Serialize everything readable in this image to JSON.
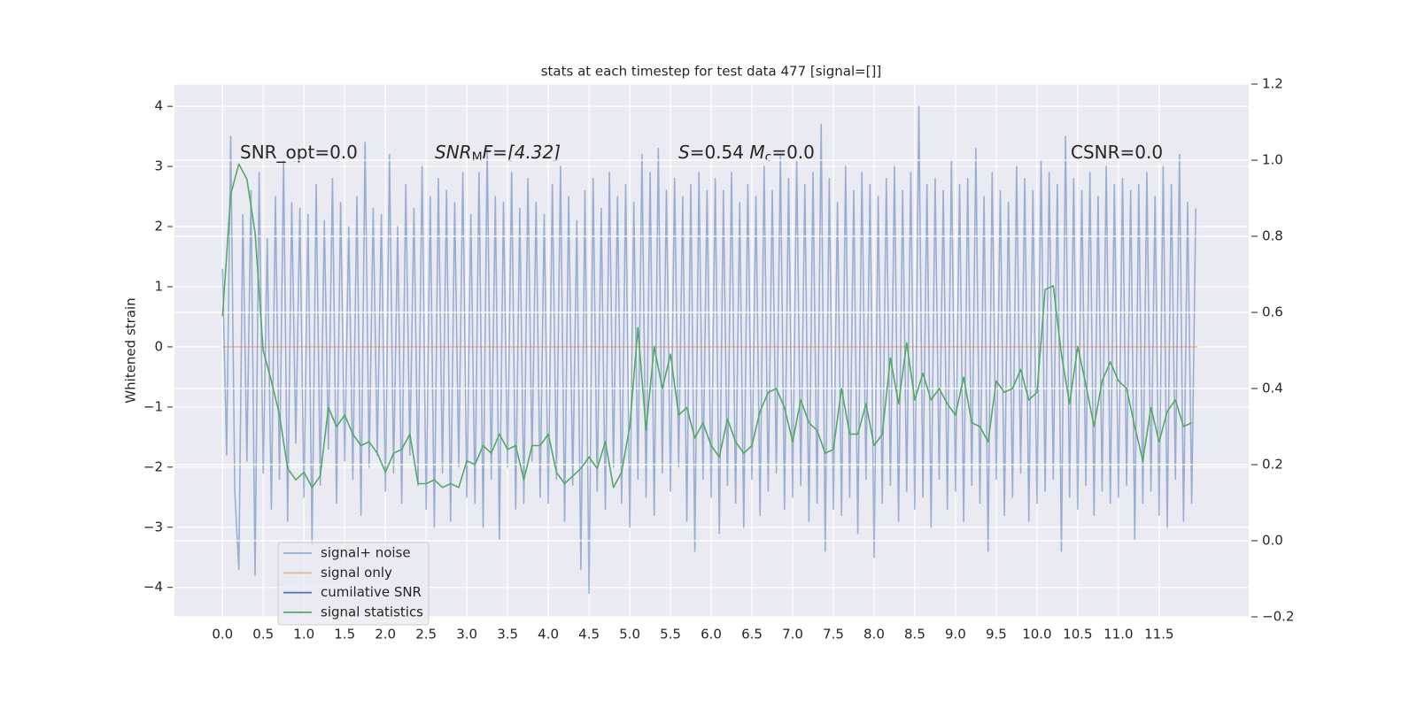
{
  "chart_data": {
    "type": "line",
    "title": "stats at each timestep for test data 477 [signal=[]]",
    "ylabel": "Whitened strain",
    "annotations": [
      [
        "SNR_opt=0.0"
      ],
      [
        "SNR",
        "M",
        "F=[4.32]"
      ],
      [
        "S",
        "=0.54   ",
        "M",
        "c",
        "=0.0"
      ],
      [
        "CSNR=0.0"
      ]
    ],
    "grid": true,
    "legend": "lower left",
    "xlim": [
      -0.59,
      12.6
    ],
    "ylim": [
      -4.49,
      4.37
    ],
    "y2lim": [
      -0.2,
      1.2
    ],
    "xticks": [
      {
        "value": 0,
        "label": "0.0"
      },
      0.5,
      {
        "value": 1,
        "label": "1.0"
      },
      1.5,
      {
        "value": 2,
        "label": "2.0"
      },
      2.5,
      {
        "value": 3,
        "label": "3.0"
      },
      3.5,
      {
        "value": 4,
        "label": "4.0"
      },
      4.5,
      {
        "value": 5,
        "label": "5.0"
      },
      5.5,
      {
        "value": 6,
        "label": "6.0"
      },
      6.5,
      {
        "value": 7,
        "label": "7.0"
      },
      7.5,
      {
        "value": 8,
        "label": "8.0"
      },
      8.5,
      {
        "value": 9,
        "label": "9.0"
      },
      9.5,
      {
        "value": 10,
        "label": "10.0"
      },
      10.5,
      {
        "value": 11,
        "label": "11.0"
      },
      11.5
    ],
    "yticks": [
      {
        "value": -4,
        "label": "−4"
      },
      {
        "value": -3,
        "label": "−3"
      },
      {
        "value": -2,
        "label": "−2"
      },
      {
        "value": -1,
        "label": "−1"
      },
      0,
      1,
      2,
      3,
      4
    ],
    "y2ticks": [
      {
        "value": -0.2,
        "label": "−0.2"
      },
      {
        "value": 0,
        "label": "0.0"
      },
      0.2,
      0.4,
      0.6,
      0.8,
      {
        "value": 1,
        "label": "1.0"
      },
      1.2
    ],
    "series": [
      {
        "name": "signal+ noise",
        "color": "#4c72b0",
        "alpha": 0.5,
        "x": [
          0,
          0.05,
          0.1,
          0.15,
          0.2,
          0.25,
          0.3,
          0.35,
          0.4,
          0.45,
          0.5,
          0.55,
          0.6,
          0.65,
          0.7,
          0.75,
          0.8,
          0.85,
          0.9,
          0.95,
          1,
          1.05,
          1.1,
          1.15,
          1.2,
          1.25,
          1.3,
          1.35,
          1.4,
          1.45,
          1.5,
          1.55,
          1.6,
          1.65,
          1.7,
          1.75,
          1.8,
          1.85,
          1.9,
          1.95,
          2,
          2.05,
          2.1,
          2.15,
          2.2,
          2.25,
          2.3,
          2.35,
          2.4,
          2.45,
          2.5,
          2.55,
          2.6,
          2.65,
          2.7,
          2.75,
          2.8,
          2.85,
          2.9,
          2.95,
          3,
          3.05,
          3.1,
          3.15,
          3.2,
          3.25,
          3.3,
          3.35,
          3.4,
          3.45,
          3.5,
          3.55,
          3.6,
          3.65,
          3.7,
          3.75,
          3.8,
          3.85,
          3.9,
          3.95,
          4,
          4.05,
          4.1,
          4.15,
          4.2,
          4.25,
          4.3,
          4.35,
          4.4,
          4.45,
          4.5,
          4.55,
          4.6,
          4.65,
          4.7,
          4.75,
          4.8,
          4.85,
          4.9,
          4.95,
          5,
          5.05,
          5.1,
          5.15,
          5.2,
          5.25,
          5.3,
          5.35,
          5.4,
          5.45,
          5.5,
          5.55,
          5.6,
          5.65,
          5.7,
          5.75,
          5.8,
          5.85,
          5.9,
          5.95,
          6,
          6.05,
          6.1,
          6.15,
          6.2,
          6.25,
          6.3,
          6.35,
          6.4,
          6.45,
          6.5,
          6.55,
          6.6,
          6.65,
          6.7,
          6.75,
          6.8,
          6.85,
          6.9,
          6.95,
          7,
          7.05,
          7.1,
          7.15,
          7.2,
          7.25,
          7.3,
          7.35,
          7.4,
          7.45,
          7.5,
          7.55,
          7.6,
          7.65,
          7.7,
          7.75,
          7.8,
          7.85,
          7.9,
          7.95,
          8,
          8.05,
          8.1,
          8.15,
          8.2,
          8.25,
          8.3,
          8.35,
          8.4,
          8.45,
          8.5,
          8.55,
          8.6,
          8.65,
          8.7,
          8.75,
          8.8,
          8.85,
          8.9,
          8.95,
          9,
          9.05,
          9.1,
          9.15,
          9.2,
          9.25,
          9.3,
          9.35,
          9.4,
          9.45,
          9.5,
          9.55,
          9.6,
          9.65,
          9.7,
          9.75,
          9.8,
          9.85,
          9.9,
          9.95,
          10,
          10.05,
          10.1,
          10.15,
          10.2,
          10.25,
          10.3,
          10.35,
          10.4,
          10.45,
          10.5,
          10.55,
          10.6,
          10.65,
          10.7,
          10.75,
          10.8,
          10.85,
          10.9,
          10.95,
          11,
          11.05,
          11.1,
          11.15,
          11.2,
          11.25,
          11.3,
          11.35,
          11.4,
          11.45,
          11.5,
          11.55,
          11.6,
          11.65,
          11.7,
          11.75,
          11.8,
          11.85,
          11.9,
          11.95
        ],
        "values": [
          1.3,
          -1.8,
          3.5,
          -2.4,
          -3.7,
          2.2,
          -1.9,
          2.6,
          -3.8,
          2.9,
          -2.1,
          1.8,
          -2.7,
          2.5,
          -2.2,
          3.1,
          -2.9,
          2.4,
          -1.6,
          2.3,
          -2.5,
          2.2,
          -3.3,
          2.7,
          -2.3,
          2.1,
          -1.7,
          2.8,
          -2.6,
          2.4,
          -1.9,
          2.0,
          -2.2,
          2.5,
          -2.8,
          3.4,
          -2.0,
          2.3,
          -1.8,
          2.2,
          -2.4,
          3.2,
          -2.1,
          2.0,
          -2.6,
          2.7,
          -1.8,
          2.3,
          -2.3,
          3.0,
          -2.7,
          2.5,
          -3.0,
          2.8,
          -2.1,
          2.6,
          -2.9,
          2.4,
          -2.0,
          2.9,
          -2.5,
          2.2,
          -2.6,
          2.9,
          -3.0,
          3.3,
          -2.2,
          2.5,
          -3.2,
          2.4,
          -2.0,
          2.9,
          -2.7,
          2.3,
          -2.6,
          2.8,
          -1.9,
          2.4,
          -2.5,
          2.2,
          -2.6,
          2.7,
          -2.2,
          3.0,
          -2.9,
          2.5,
          -2.3,
          2.1,
          -3.7,
          2.6,
          -4.1,
          2.8,
          -2.4,
          2.3,
          -2.7,
          2.9,
          -2.0,
          2.5,
          -2.6,
          2.7,
          -3.0,
          2.4,
          -2.2,
          3.2,
          -2.5,
          2.9,
          -2.8,
          3.3,
          -2.1,
          2.6,
          -2.4,
          2.8,
          -2.0,
          2.5,
          -2.9,
          2.7,
          -3.4,
          2.9,
          -2.2,
          2.6,
          -2.5,
          2.8,
          -3.1,
          2.6,
          -2.3,
          2.9,
          -2.6,
          2.4,
          -3.0,
          2.7,
          -2.2,
          2.5,
          -2.8,
          3.0,
          -2.4,
          2.6,
          -2.1,
          3.2,
          -2.7,
          2.8,
          -2.5,
          3.1,
          -2.3,
          2.7,
          -2.9,
          2.9,
          -2.6,
          3.7,
          -3.4,
          2.8,
          -2.7,
          2.4,
          -2.8,
          3.0,
          -2.5,
          2.6,
          -3.1,
          2.9,
          -2.2,
          2.7,
          -3.5,
          2.5,
          -2.6,
          2.8,
          -2.3,
          3.0,
          -2.9,
          2.6,
          -2.4,
          2.9,
          -2.7,
          4.0,
          -2.5,
          2.7,
          -3.0,
          2.8,
          -2.2,
          2.6,
          -2.7,
          3.1,
          -2.4,
          2.7,
          -2.9,
          2.8,
          -2.3,
          3.3,
          -2.6,
          2.5,
          -3.4,
          2.9,
          -2.2,
          2.6,
          -2.8,
          2.4,
          -2.5,
          3.0,
          -2.1,
          2.8,
          -2.9,
          2.6,
          -2.6,
          3.1,
          -2.4,
          2.9,
          -2.2,
          2.7,
          -3.4,
          3.5,
          -2.5,
          2.8,
          -2.7,
          2.6,
          -2.3,
          2.9,
          -2.8,
          2.5,
          -2.4,
          3.0,
          -2.6,
          2.7,
          -2.5,
          2.8,
          -2.3,
          2.6,
          -3.2,
          2.7,
          -2.6,
          2.9,
          -2.4,
          2.5,
          -2.8,
          3.0,
          -3.0,
          2.7,
          -2.2,
          3.2,
          -2.9,
          2.4,
          -2.6,
          2.3
        ]
      },
      {
        "name": "signal only",
        "color": "#dd8452",
        "alpha": 0.5,
        "x": [
          0,
          11.97
        ],
        "values": [
          0,
          0
        ]
      },
      {
        "name": "cumilative SNR",
        "color": "#4c72b0",
        "x": [],
        "values": []
      },
      {
        "name": "signal statistics",
        "color": "#55a868",
        "axis": "y2",
        "x": [
          0,
          0.1,
          0.2,
          0.3,
          0.4,
          0.5,
          0.6,
          0.7,
          0.8,
          0.9,
          1,
          1.1,
          1.2,
          1.3,
          1.4,
          1.5,
          1.6,
          1.7,
          1.8,
          1.9,
          2,
          2.1,
          2.2,
          2.3,
          2.4,
          2.5,
          2.6,
          2.7,
          2.8,
          2.9,
          3,
          3.1,
          3.2,
          3.3,
          3.4,
          3.5,
          3.6,
          3.7,
          3.8,
          3.9,
          4,
          4.1,
          4.2,
          4.3,
          4.4,
          4.5,
          4.6,
          4.7,
          4.8,
          4.9,
          5,
          5.1,
          5.2,
          5.3,
          5.4,
          5.5,
          5.6,
          5.7,
          5.8,
          5.9,
          6,
          6.1,
          6.2,
          6.3,
          6.4,
          6.5,
          6.6,
          6.7,
          6.8,
          6.9,
          7,
          7.1,
          7.2,
          7.3,
          7.4,
          7.5,
          7.6,
          7.7,
          7.8,
          7.9,
          8,
          8.1,
          8.2,
          8.3,
          8.4,
          8.5,
          8.6,
          8.7,
          8.8,
          8.9,
          9,
          9.1,
          9.2,
          9.3,
          9.4,
          9.5,
          9.6,
          9.7,
          9.8,
          9.9,
          10,
          10.1,
          10.2,
          10.3,
          10.4,
          10.5,
          10.6,
          10.7,
          10.8,
          10.9,
          11,
          11.1,
          11.2,
          11.3,
          11.4,
          11.5,
          11.6,
          11.7,
          11.8,
          11.9
        ],
        "values": [
          0.59,
          0.91,
          0.99,
          0.95,
          0.81,
          0.5,
          0.42,
          0.33,
          0.19,
          0.16,
          0.18,
          0.14,
          0.17,
          0.35,
          0.3,
          0.33,
          0.28,
          0.25,
          0.26,
          0.23,
          0.18,
          0.23,
          0.24,
          0.28,
          0.15,
          0.15,
          0.16,
          0.14,
          0.15,
          0.14,
          0.21,
          0.2,
          0.25,
          0.23,
          0.28,
          0.24,
          0.25,
          0.16,
          0.25,
          0.25,
          0.28,
          0.18,
          0.15,
          0.17,
          0.19,
          0.22,
          0.19,
          0.26,
          0.14,
          0.18,
          0.3,
          0.56,
          0.29,
          0.51,
          0.4,
          0.49,
          0.33,
          0.35,
          0.27,
          0.31,
          0.25,
          0.22,
          0.32,
          0.26,
          0.23,
          0.25,
          0.34,
          0.39,
          0.4,
          0.35,
          0.26,
          0.37,
          0.31,
          0.29,
          0.23,
          0.24,
          0.4,
          0.28,
          0.28,
          0.36,
          0.25,
          0.28,
          0.48,
          0.36,
          0.52,
          0.37,
          0.44,
          0.37,
          0.4,
          0.36,
          0.33,
          0.43,
          0.31,
          0.3,
          0.26,
          0.42,
          0.39,
          0.4,
          0.45,
          0.37,
          0.39,
          0.66,
          0.67,
          0.49,
          0.36,
          0.51,
          0.41,
          0.3,
          0.42,
          0.47,
          0.42,
          0.4,
          0.3,
          0.21,
          0.35,
          0.26,
          0.34,
          0.37,
          0.3,
          0.31
        ]
      }
    ]
  }
}
